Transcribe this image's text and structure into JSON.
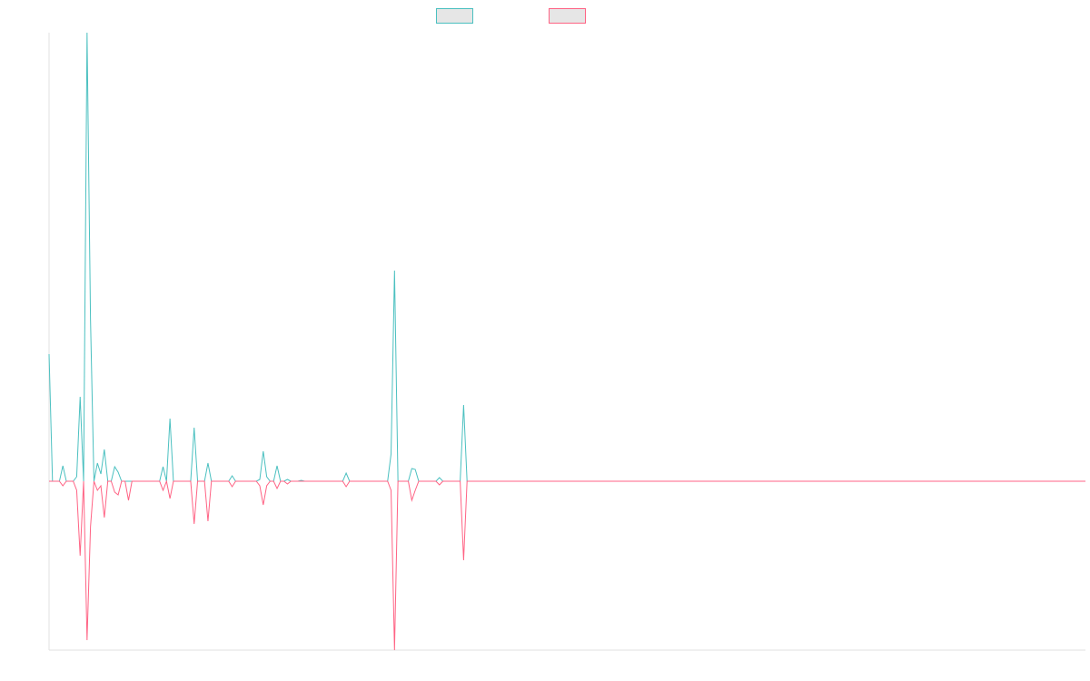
{
  "chart_data": {
    "type": "line",
    "x": [
      0,
      1,
      3,
      4,
      5,
      7,
      8,
      9,
      10,
      11,
      12,
      13,
      14,
      15,
      16,
      17,
      18,
      19,
      20,
      21,
      22,
      23,
      24,
      32,
      33,
      34,
      35,
      36,
      41,
      42,
      43,
      44,
      45,
      46,
      47,
      52,
      53,
      54,
      60,
      61,
      62,
      63,
      64,
      65,
      66,
      67,
      68,
      69,
      70,
      72,
      73,
      74,
      85,
      86,
      87,
      98,
      99,
      100,
      101,
      104,
      105,
      106,
      107,
      112,
      113,
      114,
      119,
      120,
      121,
      300
    ],
    "series": [
      {
        "color": "#4bc0c0",
        "values": [
          140,
          0,
          0,
          17,
          0,
          0,
          5,
          93,
          0,
          494,
          178,
          0,
          20,
          8,
          35,
          0,
          0,
          16,
          10,
          0,
          0,
          0,
          0,
          0,
          16,
          0,
          69,
          0,
          0,
          59,
          0,
          0,
          0,
          20,
          0,
          0,
          6,
          0,
          0,
          2,
          33,
          5,
          0,
          0,
          17,
          0,
          0,
          2,
          0,
          0,
          1,
          0,
          0,
          9,
          0,
          0,
          30,
          232,
          0,
          0,
          14,
          13,
          0,
          0,
          4,
          0,
          0,
          84,
          0,
          0
        ]
      },
      {
        "color": "#ff6384",
        "values": [
          0,
          0,
          0,
          -5,
          0,
          0,
          -10,
          -82,
          0,
          -175,
          -50,
          0,
          -10,
          -5,
          -40,
          0,
          0,
          -12,
          -15,
          0,
          0,
          -21,
          0,
          0,
          -10,
          0,
          -19,
          0,
          0,
          -47,
          0,
          0,
          0,
          -44,
          0,
          0,
          -6,
          0,
          0,
          -5,
          -26,
          -5,
          0,
          0,
          -8,
          0,
          0,
          -3,
          0,
          0,
          0,
          0,
          0,
          -6,
          0,
          0,
          -10,
          -186,
          0,
          0,
          -21,
          -10,
          0,
          0,
          -4,
          0,
          0,
          -87,
          0,
          0
        ]
      }
    ],
    "xlim": [
      0,
      300
    ],
    "ylim": [
      -186,
      494
    ]
  }
}
